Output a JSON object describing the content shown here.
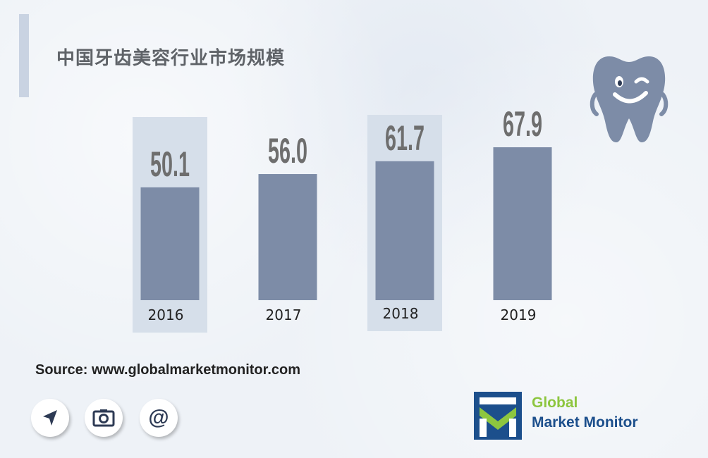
{
  "title": "中国牙齿美容行业市场规模",
  "source": "Source: www.globalmarketmonitor.com",
  "brand": {
    "line1": "Global",
    "line2": "Market Monitor"
  },
  "icons": [
    "navigation-arrow-icon",
    "camera-icon",
    "at-sign-icon",
    "tooltooth-mascot-icon"
  ],
  "colors": {
    "bar": "#7d8ca7",
    "highlight": "#d6dfea",
    "accent": "#c9d3e2"
  },
  "chart_data": {
    "type": "bar",
    "categories": [
      "2016",
      "2017",
      "2018",
      "2019"
    ],
    "values": [
      50.1,
      56.0,
      61.7,
      67.9
    ],
    "value_labels": [
      "50.1",
      "56.0",
      "61.7",
      "67.9"
    ],
    "title": "中国牙齿美容行业市场规模",
    "xlabel": "",
    "ylabel": "",
    "grid": false,
    "highlighted_categories": [
      "2016",
      "2018"
    ]
  }
}
